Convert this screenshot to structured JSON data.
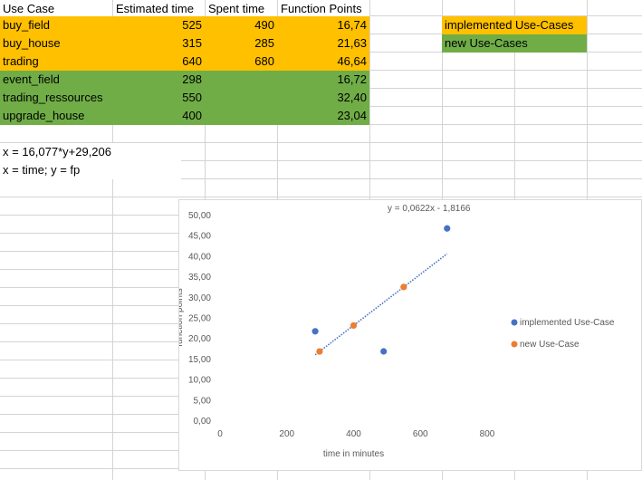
{
  "sheet": {
    "headers": [
      "Use Case",
      "Estimated time",
      "Spent time",
      "Function Points"
    ],
    "rows": [
      {
        "use_case": "buy_field",
        "estimated": "525",
        "spent": "490",
        "fp": "16,74",
        "status": "implemented"
      },
      {
        "use_case": "buy_house",
        "estimated": "315",
        "spent": "285",
        "fp": "21,63",
        "status": "implemented"
      },
      {
        "use_case": "trading",
        "estimated": "640",
        "spent": "680",
        "fp": "46,64",
        "status": "implemented"
      },
      {
        "use_case": "event_field",
        "estimated": "298",
        "spent": "",
        "fp": "16,72",
        "status": "new"
      },
      {
        "use_case": "trading_ressources",
        "estimated": "550",
        "spent": "",
        "fp": "32,40",
        "status": "new"
      },
      {
        "use_case": "upgrade_house",
        "estimated": "400",
        "spent": "",
        "fp": "23,04",
        "status": "new"
      }
    ],
    "legend_cells": {
      "implemented": "implemented Use-Cases",
      "new": "new Use-Cases"
    },
    "formula_line1": "x = 16,077*y+29,206",
    "formula_line2": "x = time; y = fp",
    "colors": {
      "implemented": "#ffc000",
      "new": "#70ad47"
    }
  },
  "chart_data": {
    "type": "scatter",
    "xlabel": "time in minutes",
    "ylabel": "function points",
    "xlim": [
      0,
      800
    ],
    "ylim": [
      0,
      50
    ],
    "x_ticks": [
      "0",
      "200",
      "400",
      "600",
      "800"
    ],
    "y_ticks": [
      "0,00",
      "5,00",
      "10,00",
      "15,00",
      "20,00",
      "25,00",
      "30,00",
      "35,00",
      "40,00",
      "45,00",
      "50,00"
    ],
    "trendline_label": "y = 0,0622x - 1,8166",
    "trendline": {
      "slope": 0.0622,
      "intercept": -1.8166,
      "x_range": [
        285,
        680
      ]
    },
    "grid": false,
    "legend_position": "right",
    "series": [
      {
        "name": "implemented Use-Case",
        "color": "#4472c4",
        "points": [
          [
            490,
            16.74
          ],
          [
            285,
            21.63
          ],
          [
            680,
            46.64
          ]
        ]
      },
      {
        "name": "new Use-Case",
        "color": "#ed7d31",
        "points": [
          [
            298,
            16.72
          ],
          [
            550,
            32.4
          ],
          [
            400,
            23.04
          ]
        ]
      }
    ]
  }
}
